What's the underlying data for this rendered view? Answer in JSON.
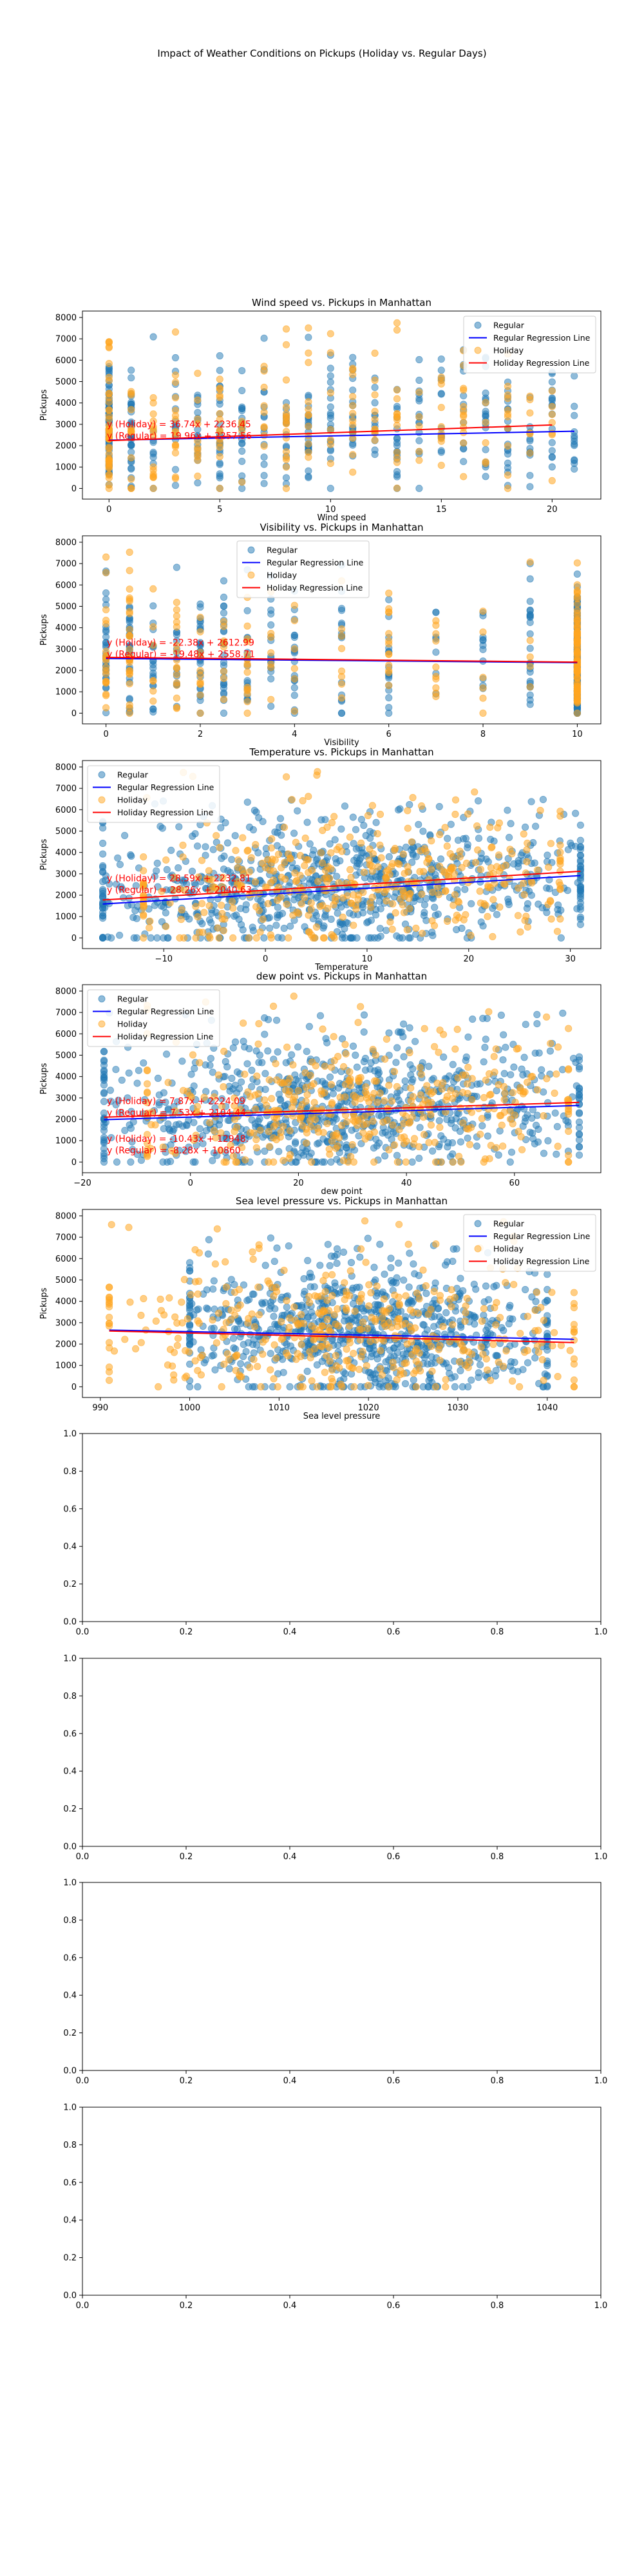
{
  "suptitle": "Impact of Weather Conditions on Pickups (Holiday vs. Regular Days)",
  "colors": {
    "regular": "#1f77b4",
    "holiday": "#ffa520",
    "regular_line": "#0000ff",
    "holiday_line": "#ff0000",
    "equation_text": "#ff0000"
  },
  "chart_data": [
    {
      "type": "scatter",
      "title": "Wind speed vs. Pickups in Manhattan",
      "xlabel": "Wind speed",
      "ylabel": "Pickups",
      "xlim": [
        -1.2,
        22.2
      ],
      "ylim": [
        -500,
        8300
      ],
      "xticks": [
        0,
        5,
        10,
        15,
        20
      ],
      "yticks": [
        0,
        1000,
        2000,
        3000,
        4000,
        5000,
        6000,
        7000,
        8000
      ],
      "x_distribution": "discrete",
      "x_values": [
        0,
        1,
        2,
        3,
        4,
        5,
        6,
        7,
        8,
        9,
        10,
        11,
        12,
        13,
        14,
        15,
        16,
        17,
        18,
        19,
        20,
        21
      ],
      "legend_position": "upper right",
      "legend": [
        "Regular",
        "Regular Regression Line",
        "Holiday",
        "Holiday Regression Line"
      ],
      "regression": {
        "holiday": {
          "slope": 36.74,
          "intercept": 2236.45,
          "x_range": [
            0,
            20
          ]
        },
        "regular": {
          "slope": 19.96,
          "intercept": 2257.56,
          "x_range": [
            0,
            21
          ]
        }
      },
      "equations": {
        "holiday": "y (Holiday) = 36.74x + 2236.45",
        "regular": "y (Regular) = 19.96x + 2257.56"
      },
      "regular_sample": {
        "count": 430,
        "x_min": 0,
        "x_max": 21,
        "y_min": 0,
        "y_max": 7100
      },
      "holiday_sample": {
        "count": 260,
        "x_min": 0,
        "x_max": 20,
        "y_min": 0,
        "y_max": 7900
      }
    },
    {
      "type": "scatter",
      "title": "Visibility vs. Pickups in Manhattan",
      "xlabel": "Visibility",
      "ylabel": "Pickups",
      "xlim": [
        -0.5,
        10.5
      ],
      "ylim": [
        -500,
        8300
      ],
      "xticks": [
        0,
        2,
        4,
        6,
        8,
        10
      ],
      "yticks": [
        0,
        1000,
        2000,
        3000,
        4000,
        5000,
        6000,
        7000,
        8000
      ],
      "x_distribution": "discrete",
      "x_values": [
        0,
        0.5,
        1,
        1.5,
        2,
        2.5,
        3,
        3.5,
        4,
        5,
        6,
        7,
        8,
        9,
        10
      ],
      "legend_position": "upper center",
      "legend": [
        "Regular",
        "Regular Regression Line",
        "Holiday",
        "Holiday Regression Line"
      ],
      "regression": {
        "holiday": {
          "slope": -22.38,
          "intercept": 2612.99,
          "x_range": [
            0,
            10
          ]
        },
        "regular": {
          "slope": -19.48,
          "intercept": 2558.71,
          "x_range": [
            0,
            10
          ]
        }
      },
      "equations": {
        "holiday": "y (Holiday) = -22.38x + 2612.99",
        "regular": "y (Regular) = -19.48x + 2558.71"
      },
      "regular_sample": {
        "count": 430,
        "x_min": 0,
        "x_max": 10,
        "y_min": 0,
        "y_max": 7100
      },
      "holiday_sample": {
        "count": 260,
        "x_min": 0,
        "x_max": 10,
        "y_min": 0,
        "y_max": 7900
      }
    },
    {
      "type": "scatter",
      "title": "Temperature vs. Pickups in Manhattan",
      "xlabel": "Temperature",
      "ylabel": "Pickups",
      "xlim": [
        -18,
        33
      ],
      "ylim": [
        -500,
        8300
      ],
      "xticks": [
        -10,
        0,
        10,
        20,
        30
      ],
      "yticks": [
        0,
        1000,
        2000,
        3000,
        4000,
        5000,
        6000,
        7000,
        8000
      ],
      "x_distribution": "continuous",
      "legend_position": "upper left",
      "legend": [
        "Regular",
        "Regular Regression Line",
        "Holiday",
        "Holiday Regression Line"
      ],
      "regression": {
        "holiday": {
          "slope": 28.59,
          "intercept": 2232.81,
          "x_range": [
            -16,
            31
          ]
        },
        "regular": {
          "slope": 28.26,
          "intercept": 2040.63,
          "x_range": [
            -16,
            31
          ]
        }
      },
      "equations": {
        "holiday": "y (Holiday) = 28.59x + 2232.81",
        "regular": "y (Regular) = 28.26x + 2040.63"
      },
      "regular_sample": {
        "count": 850,
        "x_min": -16,
        "x_max": 31,
        "y_min": 0,
        "y_max": 6500
      },
      "holiday_sample": {
        "count": 420,
        "x_min": -12,
        "x_max": 29,
        "y_min": 0,
        "y_max": 7800
      }
    },
    {
      "type": "scatter",
      "title": "dew point vs. Pickups in Manhattan",
      "xlabel": "dew point",
      "ylabel": "Pickups",
      "xlim": [
        -20,
        76
      ],
      "ylim": [
        -500,
        8300
      ],
      "xticks": [
        -20,
        0,
        20,
        40,
        60
      ],
      "yticks": [
        0,
        1000,
        2000,
        3000,
        4000,
        5000,
        6000,
        7000,
        8000
      ],
      "x_distribution": "continuous",
      "legend_position": "upper left",
      "legend": [
        "Regular",
        "Regular Regression Line",
        "Holiday",
        "Holiday Regression Line"
      ],
      "regression": {
        "holiday": {
          "slope": 7.87,
          "intercept": 2224.09,
          "x_range": [
            -16,
            72
          ]
        },
        "regular": {
          "slope": 7.53,
          "intercept": 2104.44,
          "x_range": [
            -16,
            72
          ]
        }
      },
      "equations": {
        "holiday": "y (Holiday) = 7.87x + 2224.09",
        "regular": "y (Regular) = 7.53x + 2104.44"
      },
      "regular_sample": {
        "count": 850,
        "x_min": -16,
        "x_max": 72,
        "y_min": 0,
        "y_max": 7000
      },
      "holiday_sample": {
        "count": 420,
        "x_min": -8,
        "x_max": 70,
        "y_min": 0,
        "y_max": 7800
      }
    },
    {
      "type": "scatter",
      "title": "Sea level pressure vs. Pickups in Manhattan",
      "xlabel": "Sea level pressure",
      "ylabel": "Pickups",
      "xlim": [
        988,
        1046
      ],
      "ylim": [
        -500,
        8300
      ],
      "xticks": [
        990,
        1000,
        1010,
        1020,
        1030,
        1040
      ],
      "yticks": [
        0,
        1000,
        2000,
        3000,
        4000,
        5000,
        6000,
        7000,
        8000
      ],
      "x_distribution": "continuous",
      "legend_position": "upper right",
      "legend": [
        "Regular",
        "Regular Regression Line",
        "Holiday",
        "Holiday Regression Line"
      ],
      "regression": {
        "holiday": {
          "slope": -10.43,
          "intercept": 12948.0,
          "x_range": [
            991,
            1043
          ]
        },
        "regular": {
          "slope": -8.28,
          "intercept": 10860.0,
          "x_range": [
            991,
            1043
          ]
        }
      },
      "equations": {
        "holiday": "y (Holiday) = -10.43x + 12948.",
        "regular": "y (Regular) = -8.28x + 10860."
      },
      "regular_sample": {
        "count": 850,
        "x_min": 1000,
        "x_max": 1040,
        "y_min": 0,
        "y_max": 7000
      },
      "holiday_sample": {
        "count": 420,
        "x_min": 991,
        "x_max": 1043,
        "y_min": 0,
        "y_max": 7800
      }
    },
    {
      "type": "empty",
      "xlim": [
        0,
        1
      ],
      "ylim": [
        0,
        1
      ],
      "xticks": [
        0.0,
        0.2,
        0.4,
        0.6,
        0.8,
        1.0
      ],
      "yticks": [
        0.0,
        0.2,
        0.4,
        0.6,
        0.8,
        1.0
      ]
    },
    {
      "type": "empty",
      "xlim": [
        0,
        1
      ],
      "ylim": [
        0,
        1
      ],
      "xticks": [
        0.0,
        0.2,
        0.4,
        0.6,
        0.8,
        1.0
      ],
      "yticks": [
        0.0,
        0.2,
        0.4,
        0.6,
        0.8,
        1.0
      ]
    },
    {
      "type": "empty",
      "xlim": [
        0,
        1
      ],
      "ylim": [
        0,
        1
      ],
      "xticks": [
        0.0,
        0.2,
        0.4,
        0.6,
        0.8,
        1.0
      ],
      "yticks": [
        0.0,
        0.2,
        0.4,
        0.6,
        0.8,
        1.0
      ]
    },
    {
      "type": "empty",
      "xlim": [
        0,
        1
      ],
      "ylim": [
        0,
        1
      ],
      "xticks": [
        0.0,
        0.2,
        0.4,
        0.6,
        0.8,
        1.0
      ],
      "yticks": [
        0.0,
        0.2,
        0.4,
        0.6,
        0.8,
        1.0
      ]
    }
  ]
}
